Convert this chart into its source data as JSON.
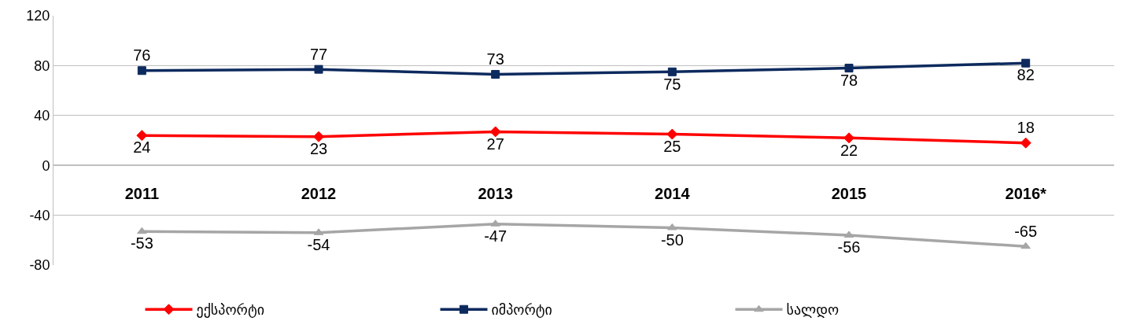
{
  "chart_data": {
    "type": "line",
    "categories": [
      "2011",
      "2012",
      "2013",
      "2014",
      "2015",
      "2016*"
    ],
    "series": [
      {
        "name": "ექსპორტი",
        "color": "#ff0000",
        "marker": "diamond",
        "values": [
          24,
          23,
          27,
          25,
          22,
          18
        ]
      },
      {
        "name": "იმპორტი",
        "color": "#0d2a5e",
        "marker": "square",
        "values": [
          76,
          77,
          73,
          75,
          78,
          82
        ]
      },
      {
        "name": "სალდო",
        "color": "#a6a6a6",
        "marker": "triangle",
        "values": [
          -53,
          -54,
          -47,
          -50,
          -56,
          -65
        ]
      }
    ],
    "ylim": [
      -80,
      120
    ],
    "yticks": [
      -80,
      -40,
      0,
      40,
      80,
      120
    ],
    "grid": "y",
    "legend": "bottom",
    "data_labels": true,
    "line_style": "solid"
  }
}
